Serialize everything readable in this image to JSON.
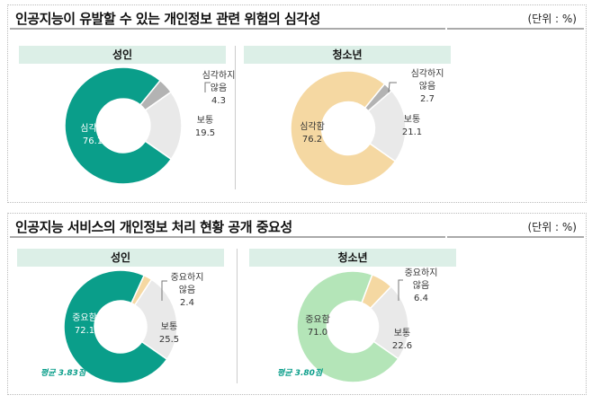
{
  "unit_label": "(단위 : %)",
  "colors": {
    "teal": "#0a9e8a",
    "gray": "#b3b3b3",
    "light_gray": "#e9e9e9",
    "peach": "#f5d8a2",
    "light_green": "#b4e5b8",
    "header_bg": "#dcefe7"
  },
  "chart_data": [
    {
      "type": "pie",
      "style": "donut",
      "title": "인공지능이 유발할 수 있는 개인정보 관련 위험의 심각성",
      "unit": "(단위 : %)",
      "subtitle": "성인",
      "slices": [
        {
          "label": "심각함",
          "value": 76.1,
          "color": "#0a9e8a"
        },
        {
          "label": "심각하지 않음",
          "value": 4.3,
          "color": "#b3b3b3"
        },
        {
          "label": "보통",
          "value": 19.5,
          "color": "#e9e9e9"
        }
      ]
    },
    {
      "type": "pie",
      "style": "donut",
      "title": "인공지능이 유발할 수 있는 개인정보 관련 위험의 심각성",
      "unit": "(단위 : %)",
      "subtitle": "청소년",
      "slices": [
        {
          "label": "심각함",
          "value": 76.2,
          "color": "#f5d8a2"
        },
        {
          "label": "심각하지 않음",
          "value": 2.7,
          "color": "#b3b3b3"
        },
        {
          "label": "보통",
          "value": 21.1,
          "color": "#e9e9e9"
        }
      ]
    },
    {
      "type": "pie",
      "style": "donut",
      "title": "인공지능 서비스의 개인정보 처리 현황 공개 중요성",
      "unit": "(단위 : %)",
      "subtitle": "성인",
      "annotation": "평균 3.83점",
      "slices": [
        {
          "label": "중요함",
          "value": 72.1,
          "color": "#0a9e8a"
        },
        {
          "label": "중요하지 않음",
          "value": 2.4,
          "color": "#f5d8a2"
        },
        {
          "label": "보통",
          "value": 25.5,
          "color": "#e9e9e9"
        }
      ]
    },
    {
      "type": "pie",
      "style": "donut",
      "title": "인공지능 서비스의 개인정보 처리 현황 공개 중요성",
      "unit": "(단위 : %)",
      "subtitle": "청소년",
      "annotation": "평균 3.80점",
      "slices": [
        {
          "label": "중요함",
          "value": 71.0,
          "color": "#b4e5b8"
        },
        {
          "label": "중요하지 않음",
          "value": 6.4,
          "color": "#f5d8a2"
        },
        {
          "label": "보통",
          "value": 22.6,
          "color": "#e9e9e9"
        }
      ]
    }
  ],
  "labels": [
    {
      "major": [
        "심각함",
        "76.1"
      ],
      "minor": [
        "심각하지",
        "않음",
        "4.3"
      ],
      "mid": [
        "보통",
        "19.5"
      ]
    },
    {
      "major": [
        "심각함",
        "76.2"
      ],
      "minor": [
        "심각하지",
        "않음",
        "2.7"
      ],
      "mid": [
        "보통",
        "21.1"
      ]
    },
    {
      "major": [
        "중요함",
        "72.1"
      ],
      "minor": [
        "중요하지",
        "않음",
        "2.4"
      ],
      "mid": [
        "보통",
        "25.5"
      ]
    },
    {
      "major": [
        "중요함",
        "71.0"
      ],
      "minor": [
        "중요하지",
        "않음",
        "6.4"
      ],
      "mid": [
        "보통",
        "22.6"
      ]
    }
  ]
}
